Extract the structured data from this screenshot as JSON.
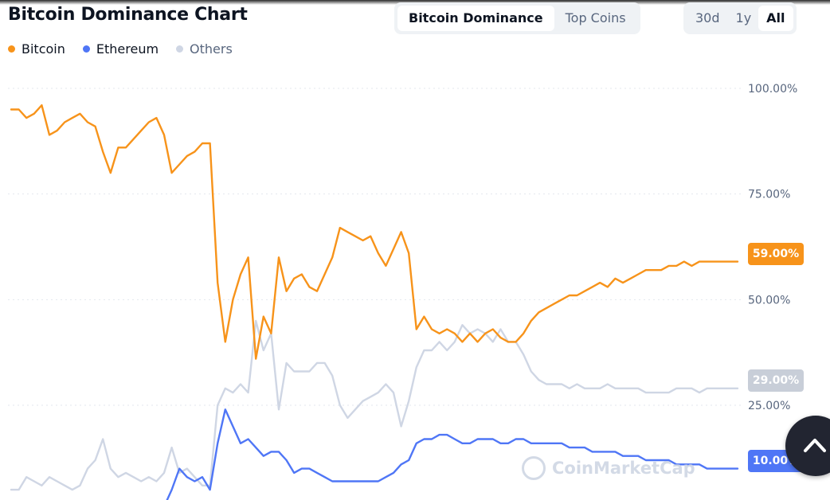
{
  "header": {
    "title": "Bitcoin Dominance Chart",
    "view_tabs": [
      "Bitcoin Dominance",
      "Top Coins"
    ],
    "active_view": "Bitcoin Dominance",
    "range_tabs": [
      "30d",
      "1y",
      "All"
    ],
    "active_range": "All"
  },
  "watermark": "CoinMarketCap",
  "icons": {
    "scroll_top": "chevron-up-icon",
    "watermark_logo": "coinmarketcap-logo"
  },
  "colors": {
    "bitcoin": "#f7931a",
    "ethereum": "#4f76f6",
    "others": "#cfd6e4",
    "badge_others": "#c8ced8"
  },
  "chart_data": {
    "type": "line",
    "y_axis_position": "right",
    "yticks": [
      "100.00%",
      "75.00%",
      "50.00%",
      "25.00%"
    ],
    "ytick_values": [
      100,
      75,
      50,
      25
    ],
    "ylim": [
      0,
      110
    ],
    "grid": true,
    "legend": "top-left",
    "x": [
      0,
      1,
      2,
      3,
      4,
      5,
      6,
      7,
      8,
      9,
      10,
      11,
      12,
      13,
      14,
      15,
      16,
      17,
      18,
      19,
      20,
      21,
      22,
      23,
      24,
      25,
      26,
      27,
      28,
      29,
      30,
      31,
      32,
      33,
      34,
      35,
      36,
      37,
      38,
      39,
      40,
      41,
      42,
      43,
      44,
      45,
      46,
      47,
      48,
      49,
      50,
      51,
      52,
      53,
      54,
      55,
      56,
      57,
      58,
      59,
      60,
      61,
      62,
      63,
      64,
      65,
      66,
      67,
      68,
      69,
      70,
      71,
      72,
      73,
      74,
      75,
      76,
      77,
      78,
      79,
      80,
      81,
      82,
      83,
      84,
      85,
      86,
      87,
      88,
      89,
      90,
      91,
      92,
      93,
      94,
      95
    ],
    "series": [
      {
        "name": "Bitcoin",
        "color": "#f7931a",
        "last_value_label": "59.00%",
        "values": [
          95,
          95,
          93,
          94,
          96,
          89,
          90,
          92,
          93,
          94,
          92,
          91,
          85,
          80,
          86,
          86,
          88,
          90,
          92,
          93,
          89,
          80,
          82,
          84,
          85,
          87,
          87,
          54,
          40,
          50,
          56,
          60,
          36,
          46,
          42,
          60,
          52,
          55,
          56,
          53,
          52,
          56,
          60,
          67,
          66,
          65,
          64,
          65,
          61,
          58,
          62,
          66,
          61,
          43,
          46,
          43,
          42,
          43,
          42,
          40,
          42,
          40,
          42,
          43,
          41,
          40,
          40,
          42,
          45,
          47,
          48,
          49,
          50,
          51,
          51,
          52,
          53,
          54,
          53,
          55,
          54,
          55,
          56,
          57,
          57,
          57,
          58,
          58,
          59,
          58,
          59,
          59,
          59,
          59,
          59,
          59
        ]
      },
      {
        "name": "Ethereum",
        "color": "#4f76f6",
        "last_value_label": "10.00%",
        "values": [
          0,
          0,
          0,
          0,
          0,
          0,
          0,
          0,
          0,
          0,
          0,
          0,
          0,
          0,
          0,
          0,
          0,
          0,
          0,
          0,
          1,
          5,
          10,
          8,
          7,
          8,
          5,
          16,
          24,
          20,
          16,
          17,
          15,
          13,
          14,
          14,
          12,
          9,
          10,
          10,
          9,
          8,
          7,
          7,
          7,
          7,
          7,
          7,
          7,
          8,
          9,
          11,
          12,
          16,
          17,
          17,
          18,
          18,
          17,
          16,
          16,
          17,
          17,
          17,
          16,
          16,
          17,
          17,
          16,
          16,
          16,
          16,
          16,
          15,
          15,
          15,
          14,
          14,
          14,
          14,
          13,
          13,
          13,
          12,
          12,
          12,
          12,
          11,
          11,
          11,
          11,
          10,
          10,
          10,
          10,
          10
        ]
      },
      {
        "name": "Others",
        "color": "#cfd6e4",
        "last_value_label": "29.00%",
        "values": [
          5,
          5,
          8,
          7,
          6,
          8,
          7,
          6,
          5,
          6,
          10,
          12,
          17,
          10,
          8,
          9,
          8,
          7,
          8,
          7,
          9,
          15,
          9,
          10,
          8,
          6,
          6,
          25,
          29,
          28,
          30,
          28,
          45,
          38,
          42,
          24,
          35,
          33,
          33,
          33,
          35,
          35,
          32,
          25,
          22,
          24,
          26,
          27,
          28,
          30,
          28,
          20,
          26,
          34,
          38,
          38,
          40,
          38,
          40,
          44,
          42,
          43,
          42,
          40,
          43,
          40,
          40,
          37,
          33,
          31,
          30,
          30,
          30,
          29,
          30,
          29,
          29,
          29,
          30,
          29,
          29,
          29,
          29,
          28,
          28,
          28,
          28,
          29,
          29,
          29,
          28,
          29,
          29,
          29,
          29,
          29
        ]
      }
    ]
  }
}
